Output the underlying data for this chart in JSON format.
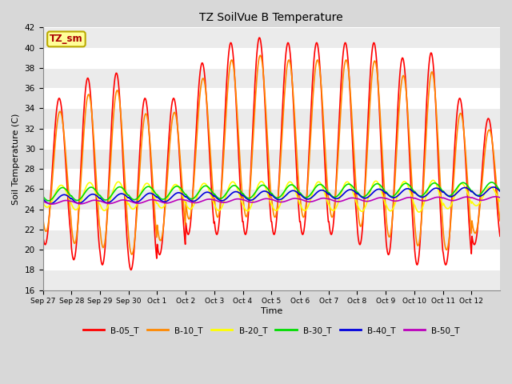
{
  "title": "TZ SoilVue B Temperature",
  "xlabel": "Time",
  "ylabel": "Soil Temperature (C)",
  "ylim": [
    16,
    42
  ],
  "yticks": [
    16,
    18,
    20,
    22,
    24,
    26,
    28,
    30,
    32,
    34,
    36,
    38,
    40,
    42
  ],
  "fig_bg_color": "#d8d8d8",
  "plot_bg_color": "#ffffff",
  "series": [
    {
      "label": "B-05_T",
      "color": "#ff0000"
    },
    {
      "label": "B-10_T",
      "color": "#ff8800"
    },
    {
      "label": "B-20_T",
      "color": "#ffff00"
    },
    {
      "label": "B-30_T",
      "color": "#00dd00"
    },
    {
      "label": "B-40_T",
      "color": "#0000dd"
    },
    {
      "label": "B-50_T",
      "color": "#bb00bb"
    }
  ],
  "annotation_label": "TZ_sm",
  "annotation_text_color": "#aa0000",
  "annotation_bg_color": "#ffff99",
  "annotation_border_color": "#bbaa00",
  "xtick_labels": [
    "Sep 27",
    "Sep 28",
    "Sep 29",
    "Sep 30",
    "Oct 1",
    "Oct 2",
    "Oct 3",
    "Oct 4",
    "Oct 5",
    "Oct 6",
    "Oct 7",
    "Oct 8",
    "Oct 9",
    "Oct 10",
    "Oct 11",
    "Oct 12"
  ],
  "n_days": 16,
  "pts_per_day": 48,
  "B05_peaks": [
    35,
    37,
    37.5,
    35,
    35,
    38.5,
    40.5,
    41.0,
    40.5,
    40.5,
    40.5,
    40.5,
    39.0,
    39.5,
    35.0,
    33
  ],
  "B05_mins": [
    20.5,
    19,
    18.5,
    18,
    19.5,
    21.5,
    21.5,
    21.5,
    21.5,
    21.5,
    21.5,
    20.5,
    19.5,
    18.5,
    18.5,
    20.5
  ]
}
